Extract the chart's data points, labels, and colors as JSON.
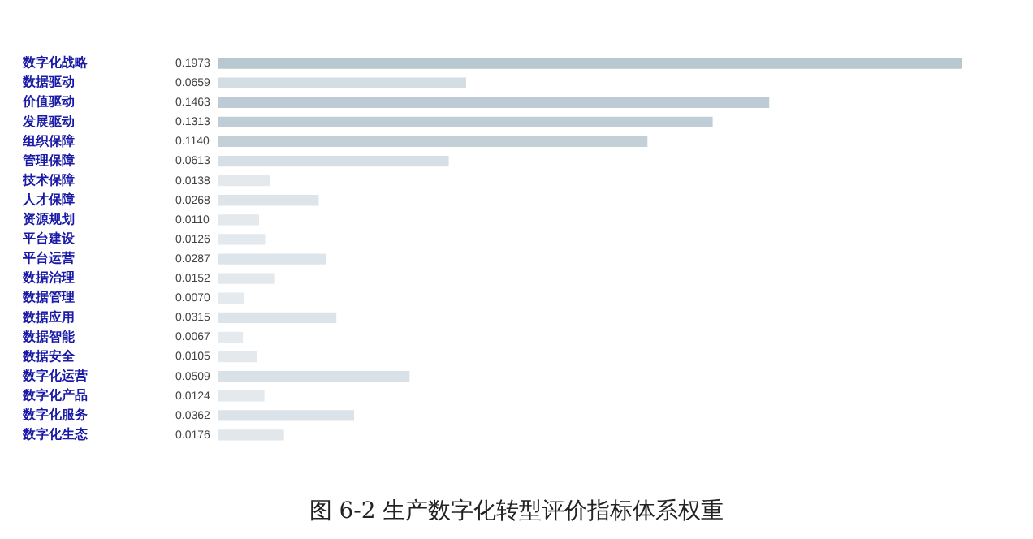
{
  "chart_data": {
    "type": "bar",
    "orientation": "horizontal",
    "title": "图 6-2 生产数字化转型评价指标体系权重",
    "categories": [
      "数字化战略",
      "数据驱动",
      "价值驱动",
      "发展驱动",
      "组织保障",
      "管理保障",
      "技术保障",
      "人才保障",
      "资源规划",
      "平台建设",
      "平台运营",
      "数据治理",
      "数据管理",
      "数据应用",
      "数据智能",
      "数据安全",
      "数字化运营",
      "数字化产品",
      "数字化服务",
      "数字化生态"
    ],
    "values": [
      0.1973,
      0.0659,
      0.1463,
      0.1313,
      0.114,
      0.0613,
      0.0138,
      0.0268,
      0.011,
      0.0126,
      0.0287,
      0.0152,
      0.007,
      0.0315,
      0.0067,
      0.0105,
      0.0509,
      0.0124,
      0.0362,
      0.0176
    ],
    "colors": [
      "#b8c8d1",
      "#d3dde4",
      "#bccbd4",
      "#bfcdd6",
      "#c3d0d8",
      "#d5dfe5",
      "#e3e9ed",
      "#dee5ea",
      "#e3e9ed",
      "#e3e9ed",
      "#dee5ea",
      "#e2e8ec",
      "#e4eaee",
      "#dce4e9",
      "#e4eaee",
      "#e3e9ed",
      "#d8e1e7",
      "#e3e9ed",
      "#dbe3e8",
      "#e1e7eb"
    ],
    "value_labels": [
      "0.1973",
      "0.0659",
      "0.1463",
      "0.1313",
      "0.1140",
      "0.0613",
      "0.0138",
      "0.0268",
      "0.0110",
      "0.0126",
      "0.0287",
      "0.0152",
      "0.0070",
      "0.0315",
      "0.0067",
      "0.0105",
      "0.0509",
      "0.0124",
      "0.0362",
      "0.0176"
    ]
  }
}
